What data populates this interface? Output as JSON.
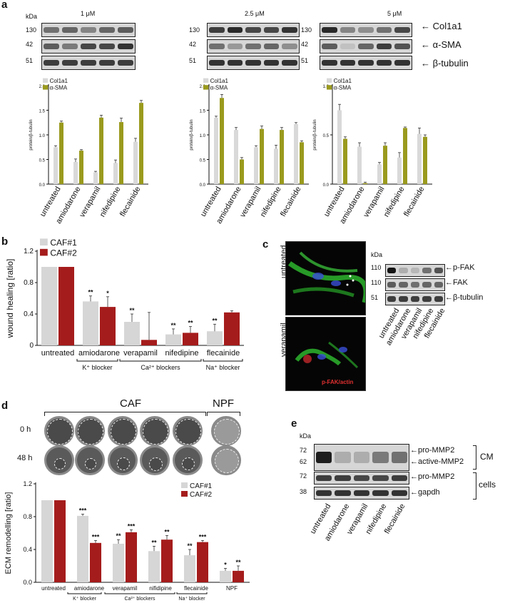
{
  "panels": {
    "a": {
      "letter": "a",
      "kda": "kDa",
      "concentrations": [
        "1 μM",
        "2.5 μM",
        "5 μM"
      ],
      "mw": [
        "130",
        "42",
        "51"
      ],
      "proteins": [
        "Col1a1",
        "α-SMA",
        "β-tubulin"
      ],
      "legend": [
        "Col1a1",
        "α-SMA"
      ],
      "ylabel": "protein/β-tubulin"
    },
    "b": {
      "letter": "b",
      "ylabel": "wound healing [ratio]",
      "groups": [
        "K⁺ blocker",
        "Ca²⁺ blockers",
        "Na⁺ blocker"
      ]
    },
    "c": {
      "letter": "c",
      "rows": [
        "untreated",
        "verapamil"
      ],
      "stain": "p-FAK/actin",
      "kda": "kDa",
      "mw": [
        "110",
        "110",
        "51"
      ],
      "proteins": [
        "p-FAK",
        "FAK",
        "β-tubulin"
      ],
      "lanes": [
        "untreated",
        "amiodarone",
        "verapamil",
        "nifedipine",
        "flecainide"
      ]
    },
    "d": {
      "letter": "d",
      "caf": "CAF",
      "npf": "NPF",
      "times": [
        "0 h",
        "48 h"
      ],
      "ylabel": "ECM remodelling [ratio]",
      "groups": [
        "K⁺ blocker",
        "Ca²⁺ blockers",
        "Na⁺ blocker"
      ]
    },
    "e": {
      "letter": "e",
      "kda": "kDa",
      "mw": [
        "72",
        "62",
        "72",
        "38"
      ],
      "proteins": [
        "pro-MMP2",
        "active-MMP2",
        "pro-MMP2",
        "gapdh"
      ],
      "groups": [
        "CM",
        "cells"
      ],
      "lanes": [
        "untreated",
        "amiodarone",
        "verapamil",
        "nifedipine",
        "flecainide"
      ]
    }
  },
  "colors": {
    "col1a1": "#d9d9d9",
    "asma": "#9a9a1e",
    "caf1": "#d6d6d6",
    "caf2": "#a51c1c"
  },
  "chart_data": [
    {
      "type": "bar",
      "panel": "a",
      "subtitle": "1 μM",
      "categories": [
        "untreated",
        "amiodarone",
        "verapamil",
        "nifedipine",
        "flecainide"
      ],
      "series": [
        {
          "name": "Col1a1",
          "values": [
            0.75,
            0.45,
            0.24,
            0.43,
            0.86
          ],
          "errors": [
            0.03,
            0.06,
            0.02,
            0.06,
            0.07
          ]
        },
        {
          "name": "α-SMA",
          "values": [
            1.25,
            0.68,
            1.35,
            1.26,
            1.65
          ],
          "errors": [
            0.03,
            0.02,
            0.05,
            0.08,
            0.05
          ]
        }
      ],
      "ylim": [
        0,
        2.0
      ],
      "yticks": [
        0,
        0.5,
        1.0,
        1.5,
        2.0
      ],
      "ylabel": "protein/β-tubulin"
    },
    {
      "type": "bar",
      "panel": "a",
      "subtitle": "2.5 μM",
      "categories": [
        "untreated",
        "amiodarone",
        "verapamil",
        "nifedipine",
        "flecainide"
      ],
      "series": [
        {
          "name": "Col1a1",
          "values": [
            1.35,
            1.1,
            0.75,
            0.72,
            1.22
          ],
          "errors": [
            0.03,
            0.05,
            0.03,
            0.07,
            0.03
          ]
        },
        {
          "name": "α-SMA",
          "values": [
            1.75,
            0.5,
            1.12,
            1.1,
            0.85
          ],
          "errors": [
            0.07,
            0.04,
            0.06,
            0.05,
            0.03
          ]
        }
      ],
      "ylim": [
        0,
        2.0
      ],
      "yticks": [
        0,
        0.5,
        1.0,
        1.5,
        2.0
      ],
      "ylabel": "protein/β-tubulin"
    },
    {
      "type": "bar",
      "panel": "a",
      "subtitle": "5 μM",
      "categories": [
        "untreated",
        "amiodarone",
        "verapamil",
        "nifedipine",
        "flecainide"
      ],
      "series": [
        {
          "name": "Col1a1",
          "values": [
            0.75,
            0.38,
            0.2,
            0.27,
            0.51
          ],
          "errors": [
            0.06,
            0.04,
            0.02,
            0.05,
            0.06
          ]
        },
        {
          "name": "α-SMA",
          "values": [
            0.46,
            0.01,
            0.39,
            0.57,
            0.48
          ],
          "errors": [
            0.02,
            0.01,
            0.03,
            0.01,
            0.02
          ]
        }
      ],
      "ylim": [
        0,
        1.0
      ],
      "yticks": [
        0,
        0.5,
        1.0
      ],
      "ylabel": "protein/β-tubulin"
    },
    {
      "type": "bar",
      "panel": "b",
      "categories": [
        "untreated",
        "amiodarone",
        "verapamil",
        "nifedipine",
        "flecainide"
      ],
      "series": [
        {
          "name": "CAF#1",
          "values": [
            1.0,
            0.56,
            0.3,
            0.14,
            0.18
          ],
          "errors": [
            0,
            0.07,
            0.1,
            0.07,
            0.09
          ],
          "sig": [
            "",
            "**",
            "**",
            "**",
            "**"
          ]
        },
        {
          "name": "CAF#2",
          "values": [
            1.0,
            0.49,
            0.07,
            0.16,
            0.42
          ],
          "errors": [
            0,
            0.13,
            0.35,
            0.08,
            0.02
          ],
          "sig": [
            "",
            "*",
            "",
            "**",
            ""
          ]
        }
      ],
      "ylim": [
        0,
        1.2
      ],
      "yticks": [
        0,
        0.4,
        0.8,
        1.2
      ],
      "ylabel": "wound healing [ratio]"
    },
    {
      "type": "bar",
      "panel": "d",
      "categories": [
        "untreated",
        "amiodarone",
        "verapamil",
        "nifidipine",
        "flecainide",
        "NPF"
      ],
      "series": [
        {
          "name": "CAF#1",
          "values": [
            1.0,
            0.81,
            0.47,
            0.38,
            0.33,
            0.14
          ],
          "errors": [
            0,
            0.02,
            0.05,
            0.06,
            0.07,
            0.03
          ],
          "sig": [
            "",
            "***",
            "**",
            "**",
            "**",
            "*"
          ]
        },
        {
          "name": "CAF#2",
          "values": [
            1.0,
            0.48,
            0.61,
            0.52,
            0.49,
            0.14
          ],
          "errors": [
            0,
            0.03,
            0.03,
            0.05,
            0.02,
            0.06
          ],
          "sig": [
            "",
            "***",
            "***",
            "**",
            "***",
            "**"
          ]
        }
      ],
      "ylim": [
        0,
        1.2
      ],
      "yticks": [
        0.0,
        0.4,
        0.8,
        1.2
      ],
      "ylabel": "ECM remodelling [ratio]"
    }
  ]
}
